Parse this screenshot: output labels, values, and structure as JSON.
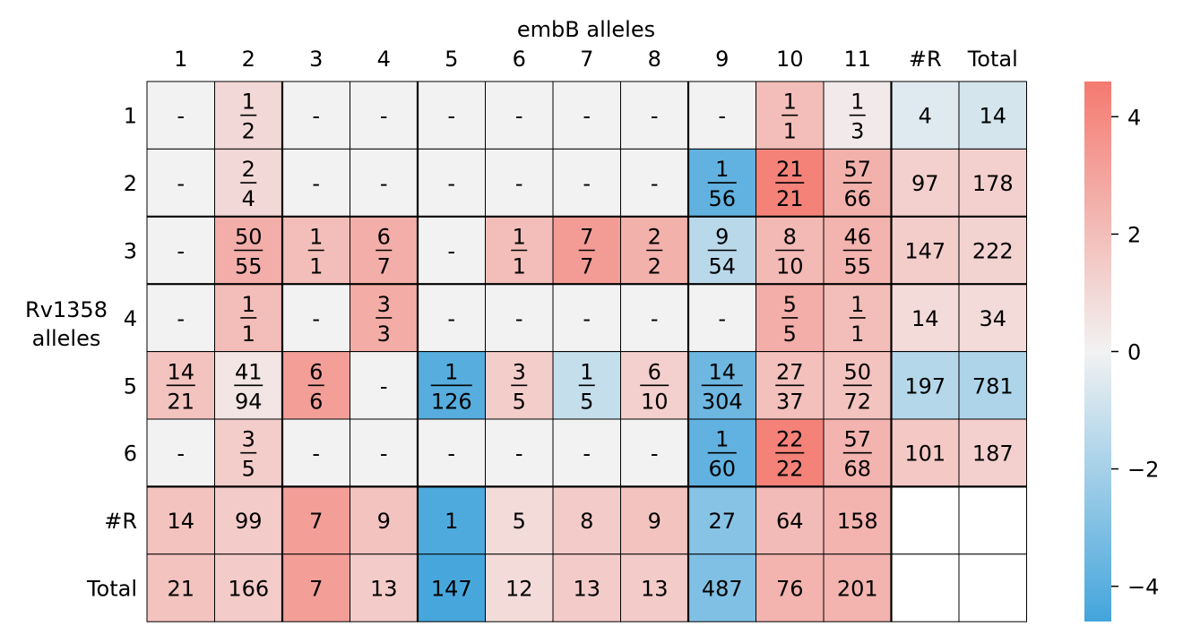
{
  "chart_data": {
    "type": "heatmap",
    "title": "embB alleles",
    "xlabel": "embB alleles",
    "ylabel": "Rv1358\nalleles",
    "x_tick_labels": [
      "1",
      "2",
      "3",
      "4",
      "5",
      "6",
      "7",
      "8",
      "9",
      "10",
      "11",
      "#R",
      "Total"
    ],
    "y_tick_labels": [
      "1",
      "2",
      "3",
      "4",
      "5",
      "6",
      "#R",
      "Total"
    ],
    "cells": [
      [
        {
          "t": "-",
          "v": 0
        },
        {
          "t": "1/2",
          "v": 1.0
        },
        {
          "t": "-",
          "v": 0
        },
        {
          "t": "-",
          "v": 0
        },
        {
          "t": "-",
          "v": 0
        },
        {
          "t": "-",
          "v": 0
        },
        {
          "t": "-",
          "v": 0
        },
        {
          "t": "-",
          "v": 0
        },
        {
          "t": "-",
          "v": 0
        },
        {
          "t": "1/1",
          "v": 2.0
        },
        {
          "t": "1/3",
          "v": 0.3
        },
        {
          "t": "4",
          "v": -0.5
        },
        {
          "t": "14",
          "v": -0.8
        }
      ],
      [
        {
          "t": "-",
          "v": 0
        },
        {
          "t": "2/4",
          "v": 1.0
        },
        {
          "t": "-",
          "v": 0
        },
        {
          "t": "-",
          "v": 0
        },
        {
          "t": "-",
          "v": 0
        },
        {
          "t": "-",
          "v": 0
        },
        {
          "t": "-",
          "v": 0
        },
        {
          "t": "-",
          "v": 0
        },
        {
          "t": "1/56",
          "v": -3.8
        },
        {
          "t": "21/21",
          "v": 4.3
        },
        {
          "t": "57/66",
          "v": 2.5
        },
        {
          "t": "97",
          "v": 1.3
        },
        {
          "t": "178",
          "v": 1.3
        }
      ],
      [
        {
          "t": "-",
          "v": 0
        },
        {
          "t": "50/55",
          "v": 2.6
        },
        {
          "t": "1/1",
          "v": 2.0
        },
        {
          "t": "6/7",
          "v": 2.6
        },
        {
          "t": "-",
          "v": 0
        },
        {
          "t": "1/1",
          "v": 2.0
        },
        {
          "t": "7/7",
          "v": 3.3
        },
        {
          "t": "2/2",
          "v": 2.5
        },
        {
          "t": "9/54",
          "v": -1.5
        },
        {
          "t": "8/10",
          "v": 2.2
        },
        {
          "t": "46/55",
          "v": 2.4
        },
        {
          "t": "147",
          "v": 1.4
        },
        {
          "t": "222",
          "v": 1.2
        }
      ],
      [
        {
          "t": "-",
          "v": 0
        },
        {
          "t": "1/1",
          "v": 2.0
        },
        {
          "t": "-",
          "v": 0
        },
        {
          "t": "3/3",
          "v": 2.7
        },
        {
          "t": "-",
          "v": 0
        },
        {
          "t": "-",
          "v": 0
        },
        {
          "t": "-",
          "v": 0
        },
        {
          "t": "-",
          "v": 0
        },
        {
          "t": "-",
          "v": 0
        },
        {
          "t": "5/5",
          "v": 2.6
        },
        {
          "t": "1/1",
          "v": 2.0
        },
        {
          "t": "14",
          "v": 0.9
        },
        {
          "t": "34",
          "v": 0.9
        }
      ],
      [
        {
          "t": "14/21",
          "v": 1.8
        },
        {
          "t": "41/94",
          "v": 0.5
        },
        {
          "t": "6/6",
          "v": 3.2
        },
        {
          "t": "-",
          "v": 0
        },
        {
          "t": "1/126",
          "v": -4.1
        },
        {
          "t": "3/5",
          "v": 1.4
        },
        {
          "t": "1/5",
          "v": -1.2
        },
        {
          "t": "6/10",
          "v": 1.3
        },
        {
          "t": "14/304",
          "v": -3.5
        },
        {
          "t": "27/37",
          "v": 1.9
        },
        {
          "t": "50/72",
          "v": 1.8
        },
        {
          "t": "197",
          "v": -1.6
        },
        {
          "t": "781",
          "v": -1.8
        }
      ],
      [
        {
          "t": "-",
          "v": 0
        },
        {
          "t": "3/5",
          "v": 1.4
        },
        {
          "t": "-",
          "v": 0
        },
        {
          "t": "-",
          "v": 0
        },
        {
          "t": "-",
          "v": 0
        },
        {
          "t": "-",
          "v": 0
        },
        {
          "t": "-",
          "v": 0
        },
        {
          "t": "-",
          "v": 0
        },
        {
          "t": "1/60",
          "v": -3.8
        },
        {
          "t": "22/22",
          "v": 4.3
        },
        {
          "t": "57/68",
          "v": 2.4
        },
        {
          "t": "101",
          "v": 1.6
        },
        {
          "t": "187",
          "v": 1.3
        }
      ],
      [
        {
          "t": "14",
          "v": 1.8
        },
        {
          "t": "99",
          "v": 1.5
        },
        {
          "t": "7",
          "v": 3.2
        },
        {
          "t": "9",
          "v": 1.8
        },
        {
          "t": "1",
          "v": -4.3
        },
        {
          "t": "5",
          "v": 0.9
        },
        {
          "t": "8",
          "v": 1.5
        },
        {
          "t": "9",
          "v": 1.8
        },
        {
          "t": "27",
          "v": -2.8
        },
        {
          "t": "64",
          "v": 2.1
        },
        {
          "t": "158",
          "v": 2.4
        },
        {
          "t": "",
          "v": null
        },
        {
          "t": "",
          "v": null
        }
      ],
      [
        {
          "t": "21",
          "v": 1.8
        },
        {
          "t": "166",
          "v": 1.5
        },
        {
          "t": "7",
          "v": 3.2
        },
        {
          "t": "13",
          "v": 1.5
        },
        {
          "t": "147",
          "v": -4.5
        },
        {
          "t": "12",
          "v": 0.9
        },
        {
          "t": "13",
          "v": 1.5
        },
        {
          "t": "13",
          "v": 1.5
        },
        {
          "t": "487",
          "v": -3.0
        },
        {
          "t": "76",
          "v": 2.4
        },
        {
          "t": "201",
          "v": 2.4
        },
        {
          "t": "",
          "v": null
        },
        {
          "t": "",
          "v": null
        }
      ]
    ],
    "colorbar": {
      "vmin": -4.6,
      "vmax": 4.6,
      "ticks": [
        4,
        2,
        0,
        -2,
        -4
      ],
      "tick_labels": [
        "4",
        "2",
        "0",
        "−2",
        "−4"
      ],
      "low_color": "#43a5dc",
      "mid_color": "#f2f2f2",
      "high_color": "#f47a70"
    }
  }
}
